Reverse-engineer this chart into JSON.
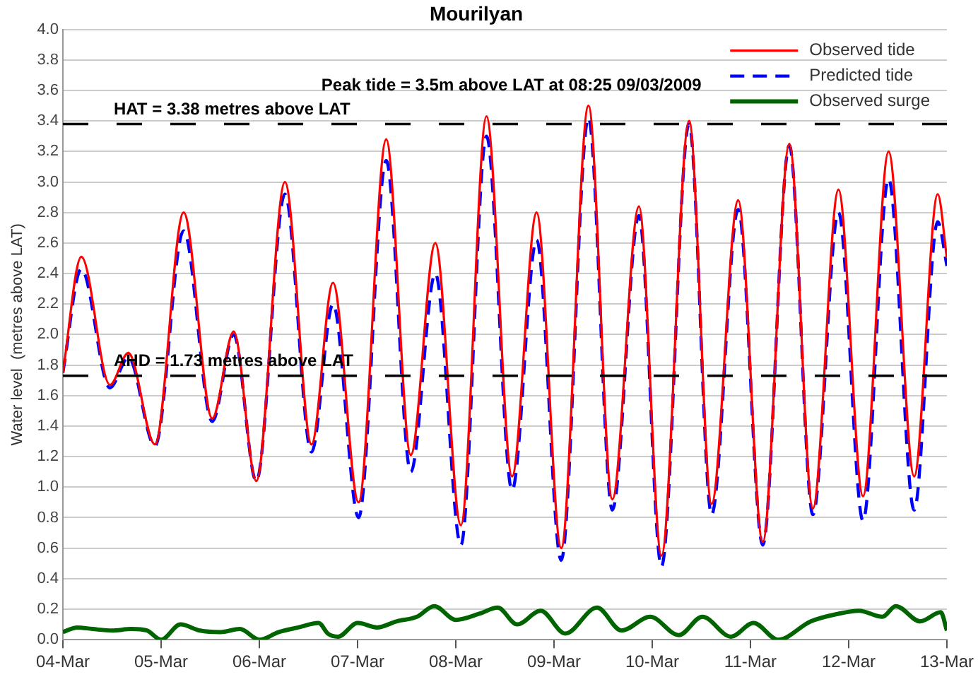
{
  "chart_data": {
    "type": "line",
    "title": "Mourilyan",
    "ylabel": "Water level  (metres above LAT)",
    "xlim": [
      "--03-04",
      "--03-13"
    ],
    "xticks": [
      {
        "value": "--03-04",
        "label": "04-Mar"
      },
      {
        "value": "--03-05",
        "label": "05-Mar"
      },
      {
        "value": "--03-06",
        "label": "06-Mar"
      },
      {
        "value": "--03-07",
        "label": "07-Mar"
      },
      {
        "value": "--03-08",
        "label": "08-Mar"
      },
      {
        "value": "--03-09",
        "label": "09-Mar"
      },
      {
        "value": "--03-10",
        "label": "10-Mar"
      },
      {
        "value": "--03-11",
        "label": "11-Mar"
      },
      {
        "value": "--03-12",
        "label": "12-Mar"
      },
      {
        "value": "--03-13",
        "label": "13-Mar"
      }
    ],
    "x": [
      "--03-04T00:00",
      "--03-04T04:30",
      "--03-04T11:30",
      "--03-04T16:00",
      "--03-04T22:30",
      "--03-05T05:30",
      "--03-05T12:30",
      "--03-05T17:45",
      "--03-05T23:15",
      "--03-06T06:15",
      "--03-06T12:45",
      "--03-06T18:00",
      "--03-07T00:15",
      "--03-07T07:00",
      "--03-07T13:00",
      "--03-07T19:00",
      "--03-08T01:15",
      "--03-08T07:30",
      "--03-08T13:45",
      "--03-08T19:45",
      "--03-09T01:45",
      "--03-09T08:25",
      "--03-09T14:15",
      "--03-09T20:45",
      "--03-10T02:15",
      "--03-10T09:00",
      "--03-10T14:30",
      "--03-10T21:00",
      "--03-11T03:00",
      "--03-11T09:30",
      "--03-11T15:15",
      "--03-11T21:30",
      "--03-12T03:30",
      "--03-12T09:45",
      "--03-12T16:00",
      "--03-12T21:45",
      "--03-13T00:00"
    ],
    "ylim": [
      0,
      4
    ],
    "yticks": [
      {
        "value": 0,
        "label": "0.0"
      },
      {
        "value": 0.2,
        "label": "0.2"
      },
      {
        "value": 0.4,
        "label": "0.4"
      },
      {
        "value": 0.6,
        "label": "0.6"
      },
      {
        "value": 0.8,
        "label": "0.8"
      },
      {
        "value": 1,
        "label": "1.0"
      },
      {
        "value": 1.2,
        "label": "1.2"
      },
      {
        "value": 1.4,
        "label": "1.4"
      },
      {
        "value": 1.6,
        "label": "1.6"
      },
      {
        "value": 1.8,
        "label": "1.8"
      },
      {
        "value": 2,
        "label": "2.0"
      },
      {
        "value": 2.2,
        "label": "2.2"
      },
      {
        "value": 2.4,
        "label": "2.4"
      },
      {
        "value": 2.6,
        "label": "2.6"
      },
      {
        "value": 2.8,
        "label": "2.8"
      },
      {
        "value": 3,
        "label": "3.0"
      },
      {
        "value": 3.2,
        "label": "3.2"
      },
      {
        "value": 3.4,
        "label": "3.4"
      },
      {
        "value": 3.6,
        "label": "3.6"
      },
      {
        "value": 3.8,
        "label": "3.8"
      },
      {
        "value": 4,
        "label": "4.0"
      }
    ],
    "grid": "y",
    "legend": "top right",
    "marker": "none",
    "ref_lines": [
      {
        "axis": "y",
        "value": 3.38,
        "label": "HAT = 3.38 metres above LAT",
        "color": "#000000",
        "line_style": "dashed"
      },
      {
        "axis": "y",
        "value": 1.73,
        "label": "AHD = 1.73 metres above LAT",
        "color": "#000000",
        "line_style": "dashed"
      }
    ],
    "annotations": [
      {
        "text": "Peak tide = 3.5m above LAT at 08:25 09/03/2009",
        "x": "--03-09T08:25",
        "y": 3.5
      }
    ],
    "series": [
      {
        "name": "Observed tide",
        "color": "#ff0000",
        "line_style": "solid",
        "values": [
          1.75,
          2.51,
          1.67,
          1.88,
          1.28,
          2.8,
          1.45,
          2.02,
          1.04,
          3.0,
          1.28,
          2.34,
          0.9,
          3.28,
          1.21,
          2.6,
          0.75,
          3.43,
          1.07,
          2.8,
          0.6,
          3.5,
          0.92,
          2.84,
          0.55,
          3.4,
          0.89,
          2.88,
          0.64,
          3.25,
          0.86,
          2.95,
          0.94,
          3.2,
          1.07,
          2.92,
          2.5
        ]
      },
      {
        "name": "Predicted tide",
        "color": "#0000ff",
        "line_style": "dashed",
        "values": [
          1.75,
          2.43,
          1.65,
          1.85,
          1.27,
          2.68,
          1.43,
          2.0,
          1.04,
          2.92,
          1.23,
          2.2,
          0.8,
          3.14,
          1.1,
          2.4,
          0.62,
          3.3,
          0.98,
          2.62,
          0.52,
          3.42,
          0.85,
          2.78,
          0.48,
          3.38,
          0.82,
          2.82,
          0.62,
          3.24,
          0.82,
          2.8,
          0.78,
          3.02,
          0.85,
          2.74,
          2.45
        ]
      },
      {
        "name": "Observed surge",
        "color": "#006400",
        "line_style": "solid",
        "x": [
          "--03-04T00:00",
          "--03-04T03:30",
          "--03-04T07:15",
          "--03-04T12:00",
          "--03-04T16:45",
          "--03-04T20:30",
          "--03-05T00:00",
          "--03-05T04:45",
          "--03-05T09:30",
          "--03-05T14:30",
          "--03-05T19:15",
          "--03-06T00:00",
          "--03-06T04:45",
          "--03-06T09:30",
          "--03-06T14:30",
          "--03-06T16:45",
          "--03-06T19:15",
          "--03-07T00:00",
          "--03-07T04:45",
          "--03-07T09:30",
          "--03-07T14:30",
          "--03-07T18:45",
          "--03-08T00:00",
          "--03-08T05:45",
          "--03-08T10:15",
          "--03-08T15:00",
          "--03-08T20:45",
          "--03-09T02:45",
          "--03-09T10:30",
          "--03-09T16:30",
          "--03-09T23:30",
          "--03-10T06:30",
          "--03-10T12:15",
          "--03-10T19:15",
          "--03-11T00:45",
          "--03-11T06:45",
          "--03-11T14:45",
          "--03-11T21:30",
          "--03-12T02:30",
          "--03-12T08:15",
          "--03-12T11:30",
          "--03-12T17:30",
          "--03-12T22:30",
          "--03-13T00:00"
        ],
        "values": [
          0.05,
          0.08,
          0.07,
          0.06,
          0.07,
          0.06,
          0.0,
          0.1,
          0.06,
          0.05,
          0.07,
          0.0,
          0.05,
          0.08,
          0.11,
          0.04,
          0.02,
          0.11,
          0.08,
          0.12,
          0.15,
          0.22,
          0.13,
          0.17,
          0.21,
          0.1,
          0.19,
          0.04,
          0.21,
          0.06,
          0.15,
          0.03,
          0.15,
          0.02,
          0.11,
          0.0,
          0.12,
          0.17,
          0.19,
          0.15,
          0.22,
          0.12,
          0.18,
          0.06
        ]
      }
    ]
  }
}
